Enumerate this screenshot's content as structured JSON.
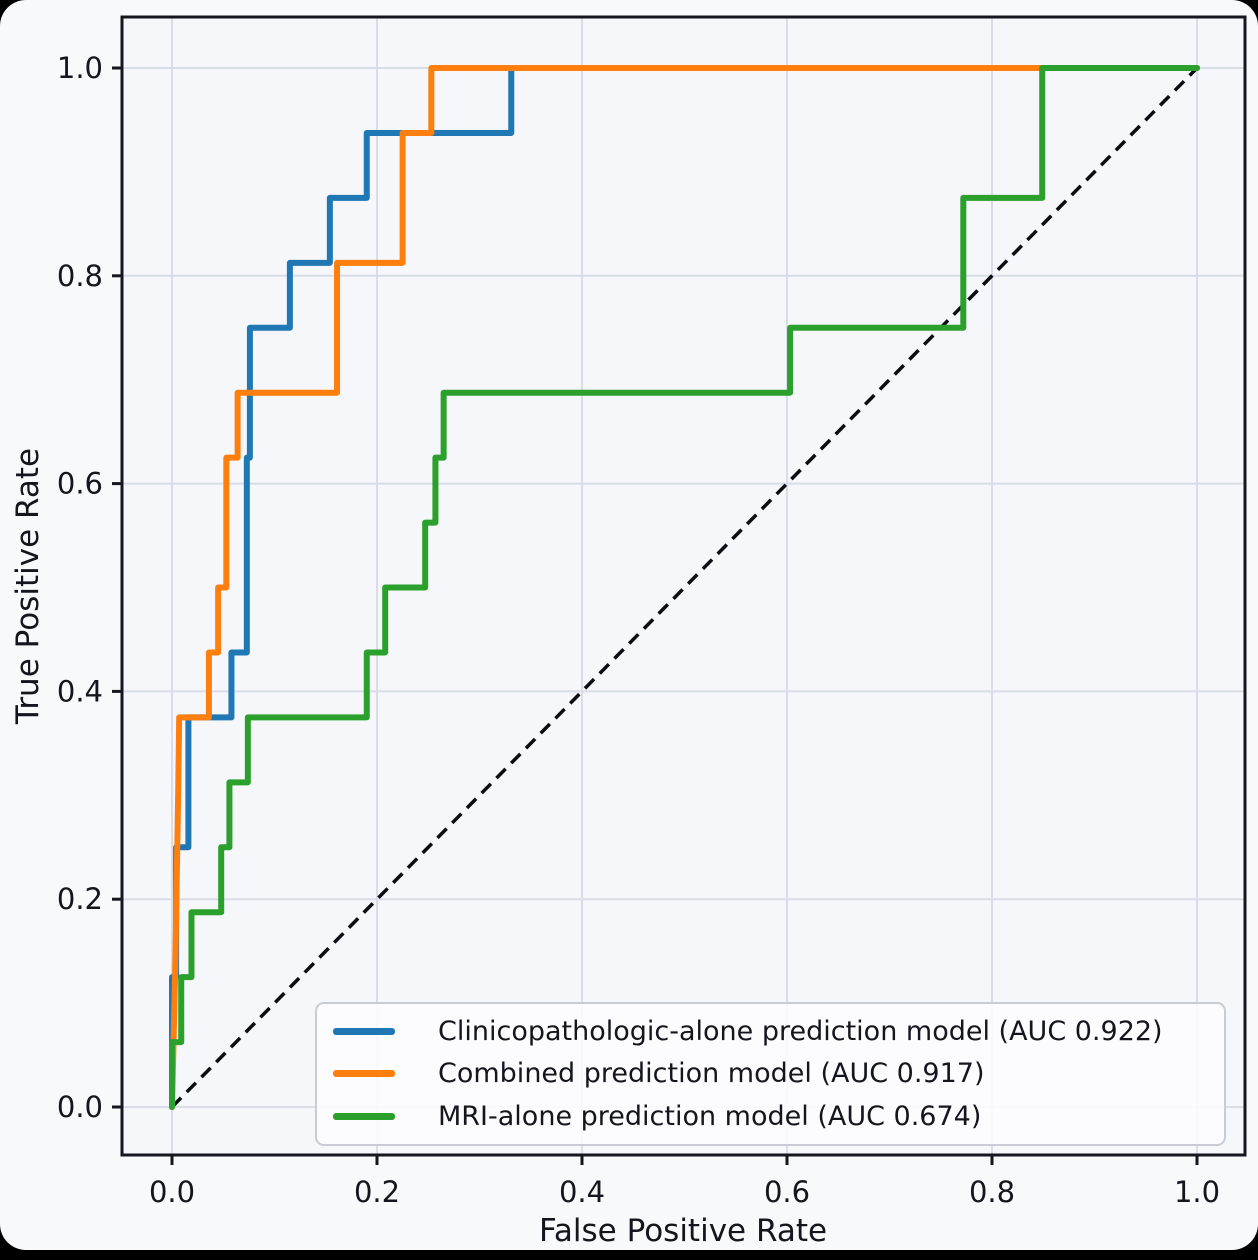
{
  "chart_data": {
    "type": "line",
    "subtype": "roc-step-curves",
    "title": "",
    "xlabel": "False Positive Rate",
    "ylabel": "True Positive Rate",
    "xlim": [
      -0.05,
      1.05
    ],
    "ylim": [
      -0.05,
      1.05
    ],
    "grid": true,
    "legend_position": "lower right",
    "x_ticks": [
      "0.0",
      "0.2",
      "0.4",
      "0.6",
      "0.8",
      "1.0"
    ],
    "y_ticks": [
      "0.0",
      "0.2",
      "0.4",
      "0.6",
      "0.8",
      "1.0"
    ],
    "x_tick_values": [
      0.0,
      0.2,
      0.4,
      0.6,
      0.8,
      1.0
    ],
    "y_tick_values": [
      0.0,
      0.2,
      0.4,
      0.6,
      0.8,
      1.0
    ],
    "diagonal_reference": {
      "label": "chance line",
      "style": "dashed",
      "color": "#0c0c14",
      "points": [
        [
          0,
          0
        ],
        [
          1,
          1
        ]
      ]
    },
    "series": [
      {
        "name": "clinicopathologic",
        "label": "Clinicopathologic-alone prediction model (AUC 0.922)",
        "auc": 0.922,
        "color": "#1f77b4",
        "points": [
          [
            0,
            0
          ],
          [
            0,
            0.125
          ],
          [
            0.004,
            0.125
          ],
          [
            0.004,
            0.25
          ],
          [
            0.016,
            0.25
          ],
          [
            0.016,
            0.375
          ],
          [
            0.058,
            0.375
          ],
          [
            0.058,
            0.4375
          ],
          [
            0.073,
            0.4375
          ],
          [
            0.073,
            0.625
          ],
          [
            0.076,
            0.625
          ],
          [
            0.076,
            0.75
          ],
          [
            0.115,
            0.75
          ],
          [
            0.115,
            0.8125
          ],
          [
            0.154,
            0.8125
          ],
          [
            0.154,
            0.875
          ],
          [
            0.19,
            0.875
          ],
          [
            0.19,
            0.9375
          ],
          [
            0.331,
            0.9375
          ],
          [
            0.331,
            1
          ],
          [
            1,
            1
          ]
        ]
      },
      {
        "name": "combined",
        "label": "Combined prediction model (AUC 0.917)",
        "auc": 0.917,
        "color": "#ff7f0e",
        "points": [
          [
            0,
            0
          ],
          [
            0.003,
            0.125
          ],
          [
            0.006,
            0.3
          ],
          [
            0.007,
            0.375
          ],
          [
            0.036,
            0.375
          ],
          [
            0.036,
            0.4375
          ],
          [
            0.045,
            0.4375
          ],
          [
            0.045,
            0.5
          ],
          [
            0.053,
            0.5
          ],
          [
            0.053,
            0.625
          ],
          [
            0.064,
            0.625
          ],
          [
            0.064,
            0.6875
          ],
          [
            0.161,
            0.6875
          ],
          [
            0.161,
            0.8125
          ],
          [
            0.225,
            0.8125
          ],
          [
            0.225,
            0.9375
          ],
          [
            0.253,
            0.9375
          ],
          [
            0.253,
            1
          ],
          [
            1,
            1
          ]
        ]
      },
      {
        "name": "mri",
        "label": "MRI-alone prediction model (AUC 0.674)",
        "auc": 0.674,
        "color": "#2ca02c",
        "points": [
          [
            0,
            0
          ],
          [
            0,
            0.0625
          ],
          [
            0.009,
            0.0625
          ],
          [
            0.009,
            0.125
          ],
          [
            0.019,
            0.125
          ],
          [
            0.019,
            0.1875
          ],
          [
            0.048,
            0.1875
          ],
          [
            0.048,
            0.25
          ],
          [
            0.056,
            0.25
          ],
          [
            0.056,
            0.3125
          ],
          [
            0.074,
            0.3125
          ],
          [
            0.074,
            0.375
          ],
          [
            0.19,
            0.375
          ],
          [
            0.19,
            0.4375
          ],
          [
            0.208,
            0.4375
          ],
          [
            0.208,
            0.5
          ],
          [
            0.247,
            0.5
          ],
          [
            0.247,
            0.5625
          ],
          [
            0.257,
            0.5625
          ],
          [
            0.257,
            0.625
          ],
          [
            0.265,
            0.625
          ],
          [
            0.265,
            0.6875
          ],
          [
            0.603,
            0.6875
          ],
          [
            0.603,
            0.75
          ],
          [
            0.772,
            0.75
          ],
          [
            0.772,
            0.875
          ],
          [
            0.849,
            0.875
          ],
          [
            0.849,
            1
          ],
          [
            1,
            1
          ]
        ]
      }
    ],
    "colors": {
      "figure_background": "#f8f9fb",
      "axes_background": "#f5f7fa",
      "gridline": "#d8dde8",
      "spine": "#16161f",
      "tick_text": "#15151e"
    }
  }
}
